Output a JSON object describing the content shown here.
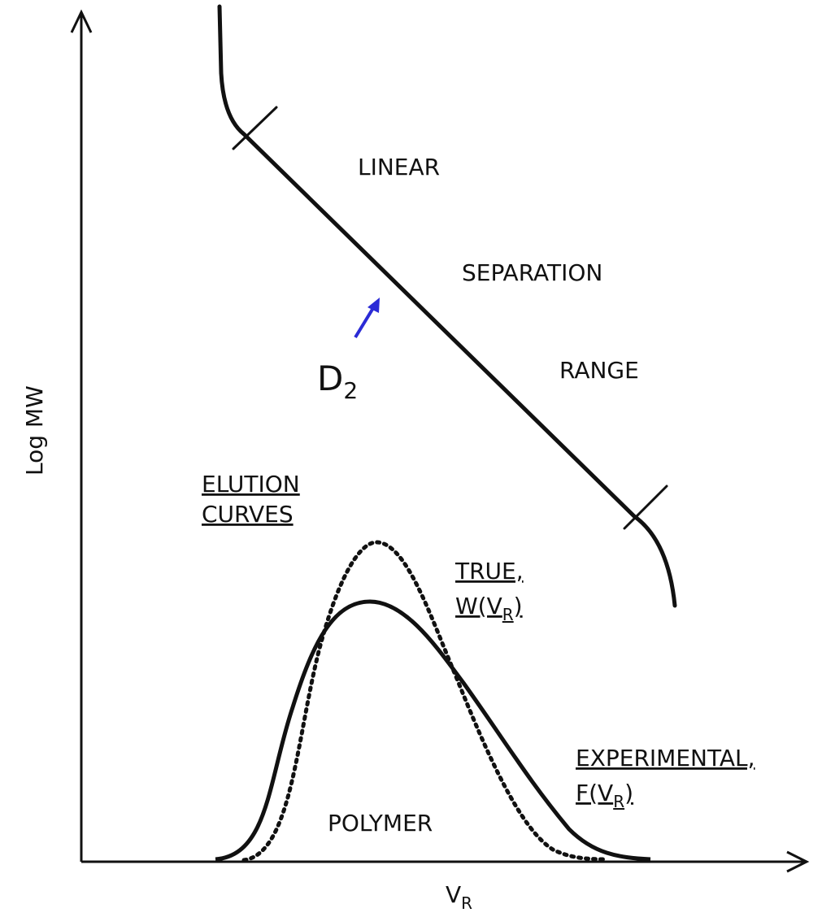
{
  "axes": {
    "y_label": "Log MW",
    "x_label": {
      "main": "V",
      "sub": "R"
    }
  },
  "calibration_labels": [
    "LINEAR",
    "SEPARATION",
    "RANGE"
  ],
  "annotation": {
    "main": "D",
    "sub": "2"
  },
  "legend_title": [
    "ELUTION",
    "CURVES"
  ],
  "true_curve": {
    "name": "TRUE,",
    "formula": {
      "main": "W(V",
      "sub": "R",
      "close": ")"
    }
  },
  "experimental_curve": {
    "name": "EXPERIMENTAL,",
    "formula": {
      "main": "F(V",
      "sub": "R",
      "close": ")"
    }
  },
  "area_label": "POLYMER"
}
